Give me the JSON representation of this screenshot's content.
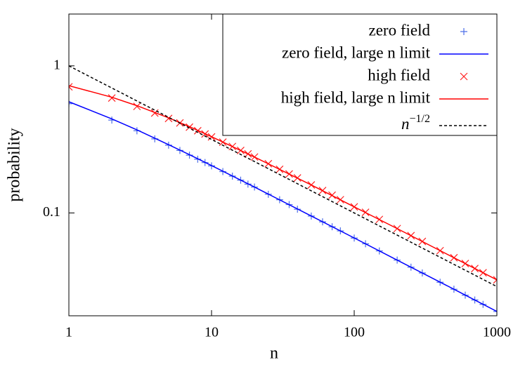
{
  "chart_data": {
    "type": "line",
    "xlabel": "n",
    "ylabel": "probability",
    "log_x": true,
    "log_y": true,
    "xlim": [
      1,
      1000
    ],
    "ylim": [
      0.02,
      2.25
    ],
    "xticks": [
      1,
      10,
      100,
      1000
    ],
    "yticks": [
      0.1,
      1
    ],
    "legend": "upper right",
    "series": [
      {
        "name": "zero field",
        "color": "#4d6fe8",
        "marker": "+",
        "x": [
          1,
          2,
          3,
          4,
          5,
          6,
          7,
          8,
          9,
          10,
          12,
          14,
          16,
          18,
          20,
          25,
          30,
          35,
          40,
          50,
          60,
          70,
          80,
          100,
          120,
          150,
          200,
          250,
          300,
          400,
          500,
          600,
          700,
          800,
          1000
        ],
        "values": [
          0.553,
          0.428,
          0.362,
          0.319,
          0.289,
          0.266,
          0.247,
          0.232,
          0.22,
          0.209,
          0.191,
          0.178,
          0.167,
          0.157,
          0.15,
          0.134,
          0.123,
          0.114,
          0.106,
          0.0953,
          0.087,
          0.0806,
          0.0755,
          0.0675,
          0.0617,
          0.0552,
          0.0478,
          0.0428,
          0.0391,
          0.0338,
          0.0303,
          0.0276,
          0.0256,
          0.0239,
          0.0214
        ]
      },
      {
        "name": "zero field, large n limit",
        "color": "#0000ff",
        "x": [
          1,
          2,
          3,
          5,
          7,
          10,
          20,
          50,
          100,
          200,
          500,
          1000
        ],
        "values": [
          0.57,
          0.436,
          0.367,
          0.291,
          0.249,
          0.21,
          0.15,
          0.0953,
          0.0676,
          0.0478,
          0.0303,
          0.0214
        ]
      },
      {
        "name": "high field",
        "color": "#ff2020",
        "marker": "x",
        "x": [
          1,
          2,
          3,
          4,
          5,
          6,
          7,
          8,
          9,
          10,
          12,
          14,
          16,
          18,
          20,
          25,
          30,
          35,
          40,
          50,
          60,
          70,
          80,
          100,
          120,
          150,
          200,
          250,
          300,
          400,
          500,
          600,
          700,
          800,
          1000
        ],
        "values": [
          0.72,
          0.604,
          0.53,
          0.478,
          0.439,
          0.409,
          0.383,
          0.362,
          0.344,
          0.329,
          0.303,
          0.283,
          0.266,
          0.252,
          0.24,
          0.216,
          0.198,
          0.184,
          0.173,
          0.155,
          0.142,
          0.132,
          0.123,
          0.11,
          0.101,
          0.0903,
          0.0783,
          0.0701,
          0.064,
          0.0554,
          0.0496,
          0.0453,
          0.0419,
          0.0392,
          0.0351
        ]
      },
      {
        "name": "high field, large n limit",
        "color": "#ff0000",
        "x": [
          1,
          2,
          3,
          5,
          7,
          10,
          20,
          50,
          100,
          200,
          500,
          1000
        ],
        "values": [
          0.733,
          0.612,
          0.536,
          0.443,
          0.386,
          0.33,
          0.24,
          0.155,
          0.11,
          0.0783,
          0.0496,
          0.0351
        ]
      },
      {
        "name": "n−1/2",
        "color": "#000000",
        "dashed": true,
        "x": [
          1,
          10,
          100,
          1000
        ],
        "values": [
          1,
          0.316,
          0.1,
          0.0316
        ]
      }
    ]
  }
}
